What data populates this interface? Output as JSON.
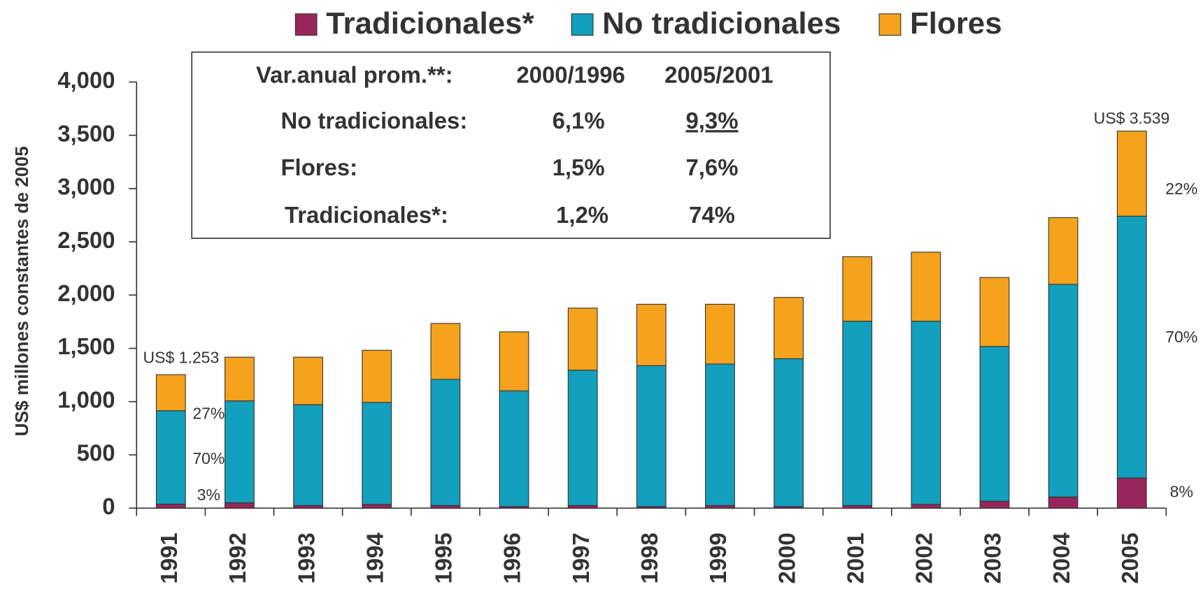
{
  "chart_data": {
    "type": "stacked_bar",
    "ylabel": "US$ millones constantes de 2005",
    "categories": [
      "1991",
      "1992",
      "1993",
      "1994",
      "1995",
      "1996",
      "1997",
      "1998",
      "1999",
      "2000",
      "2001",
      "2002",
      "2003",
      "2004",
      "2005"
    ],
    "series": [
      {
        "name": "Tradicionales*",
        "color": "#97275a",
        "values": [
          38,
          50,
          25,
          35,
          25,
          15,
          25,
          15,
          25,
          15,
          25,
          35,
          65,
          105,
          283
        ]
      },
      {
        "name": "No tradicionales",
        "color": "#139fbe",
        "values": [
          877,
          957,
          946,
          958,
          1184,
          1086,
          1270,
          1323,
          1328,
          1388,
          1730,
          1720,
          1453,
          1996,
          2458
        ]
      },
      {
        "name": "Flores",
        "color": "#f5a31c",
        "values": [
          338,
          410,
          446,
          489,
          525,
          554,
          583,
          576,
          561,
          575,
          605,
          648,
          647,
          626,
          798
        ]
      }
    ],
    "ylim": [
      0,
      4000
    ],
    "yticks": [
      0,
      500,
      {
        "value": 1000,
        "label": "1,000"
      },
      {
        "value": 1500,
        "label": "1,500"
      },
      {
        "value": 2000,
        "label": "2,000"
      },
      {
        "value": 2500,
        "label": "2,500"
      },
      {
        "value": 3000,
        "label": "3,000"
      },
      {
        "value": 3500,
        "label": "3,500"
      },
      {
        "value": 4000,
        "label": "4,000"
      }
    ],
    "annotations": [
      "US$ 1.253",
      "27%",
      "70%",
      "3%",
      "US$ 3.539",
      "22%",
      "70%",
      "8%"
    ],
    "inset_table": {
      "header": [
        "Var.anual prom.**:",
        "2000/1996",
        "2005/2001"
      ],
      "rows": [
        [
          "No tradicionales:",
          "6,1%",
          "9,3%"
        ],
        [
          "Flores:",
          "1,5%",
          "7,6%"
        ],
        [
          "Tradicionales*:",
          "1,2%",
          "74%"
        ]
      ]
    }
  }
}
